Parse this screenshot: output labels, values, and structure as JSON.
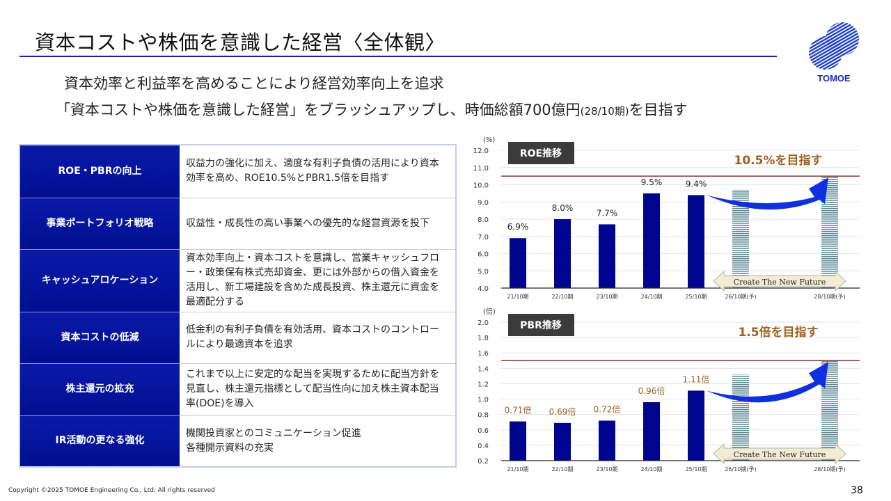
{
  "header": {
    "title": "資本コストや株価を意識した経営〈全体観〉",
    "logo_text": "TOMOE"
  },
  "subtitle": {
    "line1": "資本効率と利益率を高めることにより経営効率向上を追求",
    "line2_main": "「資本コストや株価を意識した経営」をブラッシュアップし、時価総額700億円",
    "line2_small": "(28/10期)",
    "line2_end": "を目指す"
  },
  "table": {
    "rows": [
      {
        "heading": "ROE・PBRの向上",
        "text": "収益力の強化に加え、適度な有利子負債の活用により資本効率を高め、ROE10.5%とPBR1.5倍を目指す"
      },
      {
        "heading": "事業ポートフォリオ戦略",
        "text": "収益性・成長性の高い事業への優先的な経営資源を投下"
      },
      {
        "heading": "キャッシュアロケーション",
        "text": "資本効率向上・資本コストを意識し、営業キャッシュフロー・政策保有株式売却資金、更には外部からの借入資金を活用し、新工場建設を含めた成長投資、株主還元に資金を最適配分する"
      },
      {
        "heading": "資本コストの低減",
        "text": "低金利の有利子負債を有効活用、資本コストのコントロールにより最適資本を追求"
      },
      {
        "heading": "株主還元の拡充",
        "text": "これまで以上に安定的な配当を実現するために配当方針を見直し、株主還元指標として配当性向に加え株主資本配当率(DOE)を導入"
      },
      {
        "heading": "IR活動の更なる強化",
        "text": "機関投資家とのコミュニケーション促進\n各種開示資料の充実"
      }
    ]
  },
  "chart_data": [
    {
      "type": "bar",
      "title": "ROE推移",
      "ylabel": "(%)",
      "ylim": [
        4.0,
        12.0
      ],
      "yticks": [
        "4.0",
        "5.0",
        "6.0",
        "7.0",
        "8.0",
        "9.0",
        "10.0",
        "11.0",
        "12.0"
      ],
      "categories": [
        "21/10期",
        "22/10期",
        "23/10期",
        "24/10期",
        "25/10期",
        "26/10期(予)",
        "28/10期(予)"
      ],
      "values": [
        6.9,
        8.0,
        7.7,
        9.5,
        9.4,
        9.7,
        10.5
      ],
      "labels": [
        "6.9%",
        "8.0%",
        "7.7%",
        "9.5%",
        "9.4%",
        "",
        ""
      ],
      "forecast": [
        false,
        false,
        false,
        false,
        false,
        true,
        true
      ],
      "target": 10.5,
      "target_label": "10.5%を目指す",
      "banner": "Create The New Future",
      "grid": true,
      "colors": {
        "bar": "#00058f",
        "forecast": "#5f8a96",
        "target_line": "#8b3a3a",
        "label": "#222222",
        "target_text": "#a0601e",
        "arrow": "#1030e0"
      }
    },
    {
      "type": "bar",
      "title": "PBR推移",
      "ylabel": "(倍)",
      "ylim": [
        0.2,
        2.0
      ],
      "yticks": [
        "0.2",
        "0.4",
        "0.6",
        "0.8",
        "1.0",
        "1.2",
        "1.4",
        "1.6",
        "1.8",
        "2.0"
      ],
      "categories": [
        "21/10期",
        "22/10期",
        "23/10期",
        "24/10期",
        "25/10期",
        "26/10期(予)",
        "28/10期(予)"
      ],
      "values": [
        0.71,
        0.69,
        0.72,
        0.96,
        1.11,
        1.32,
        1.5
      ],
      "labels": [
        "0.71倍",
        "0.69倍",
        "0.72倍",
        "0.96倍",
        "1.11倍",
        "",
        ""
      ],
      "forecast": [
        false,
        false,
        false,
        false,
        false,
        true,
        true
      ],
      "target": 1.5,
      "target_label": "1.5倍を目指す",
      "banner": "Create The New Future",
      "grid": true,
      "colors": {
        "bar": "#00058f",
        "forecast": "#5f8a96",
        "target_line": "#8b3a3a",
        "label": "#a0601e",
        "target_text": "#a0601e",
        "arrow": "#1030e0"
      }
    }
  ],
  "footer": {
    "copyright": "Copyright ©2025 TOMOE Engineering Co., Ltd. All rights reserved",
    "page": "38"
  }
}
